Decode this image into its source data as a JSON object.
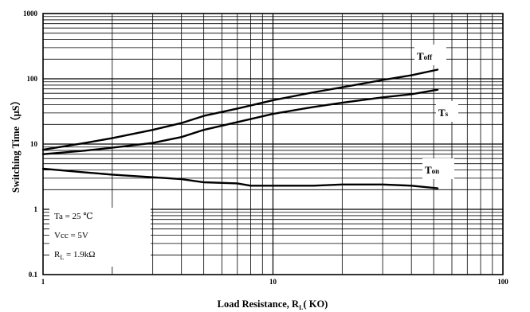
{
  "chart_data": {
    "type": "line",
    "xlabel": "Load Resistance, R",
    "xlabel_sub": "L",
    "xlabel_unit": "( KΟ)",
    "ylabel": "Switching Time（μS）",
    "x_scale": "log",
    "y_scale": "log",
    "xlim": [
      1,
      100
    ],
    "ylim": [
      0.1,
      1000
    ],
    "grid": true,
    "x_ticks": [
      {
        "value": 1,
        "label": "1"
      },
      {
        "value": 10,
        "label": "10"
      },
      {
        "value": 100,
        "label": "100"
      }
    ],
    "y_ticks": [
      {
        "value": 0.1,
        "label": "0.1"
      },
      {
        "value": 1,
        "label": "1"
      },
      {
        "value": 10,
        "label": "10"
      },
      {
        "value": 100,
        "label": "100"
      },
      {
        "value": 1000,
        "label": "1000"
      }
    ],
    "series": [
      {
        "name": "T",
        "name_sub": "off",
        "x": [
          1,
          1.5,
          2,
          3,
          4,
          5,
          7,
          10,
          15,
          20,
          30,
          40,
          52
        ],
        "y": [
          8.2,
          10.3,
          12.3,
          16.5,
          21,
          27,
          35,
          47,
          62,
          74,
          96,
          113,
          138
        ]
      },
      {
        "name": "T",
        "name_sub": "s",
        "x": [
          1,
          1.5,
          2,
          3,
          4,
          5,
          7,
          10,
          15,
          20,
          30,
          40,
          52
        ],
        "y": [
          7.0,
          7.9,
          8.8,
          10.4,
          12.8,
          16.5,
          21.7,
          29,
          37,
          43,
          52,
          58,
          68
        ]
      },
      {
        "name": "T",
        "name_sub": "on",
        "x": [
          1,
          1.5,
          2,
          3,
          4,
          5,
          7,
          8,
          10,
          15,
          20,
          30,
          40,
          52
        ],
        "y": [
          4.2,
          3.7,
          3.4,
          3.1,
          2.9,
          2.6,
          2.5,
          2.3,
          2.3,
          2.3,
          2.4,
          2.4,
          2.3,
          2.1
        ]
      }
    ],
    "conditions": [
      {
        "main": "Ta  = 25 ℃",
        "sub": "",
        "tail": ""
      },
      {
        "main": "Vcc = 5V",
        "sub": "",
        "tail": ""
      },
      {
        "main": "R",
        "sub": "L",
        "tail": " = 1.9kΩ"
      }
    ],
    "colors": {
      "line": "#000000",
      "grid": "#000000",
      "background": "#ffffff"
    }
  }
}
